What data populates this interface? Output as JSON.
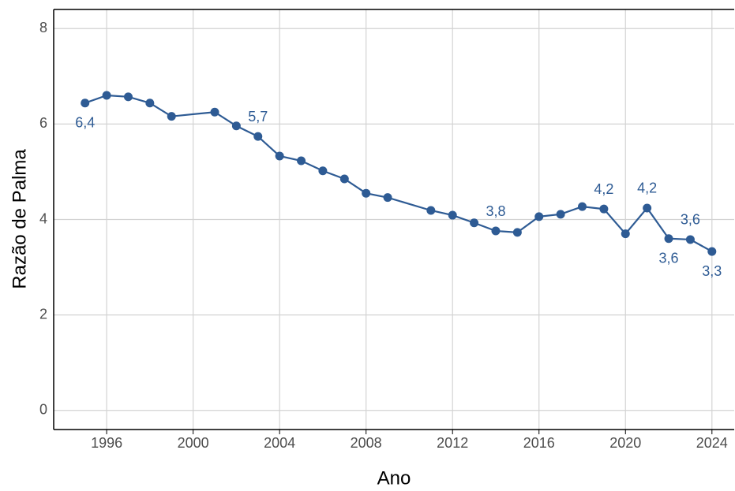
{
  "chart_data": {
    "type": "line",
    "x_label": "Ano",
    "y_label": "Razão de Palma",
    "x": [
      1995,
      1996,
      1997,
      1998,
      1999,
      2001,
      2002,
      2003,
      2004,
      2005,
      2006,
      2007,
      2008,
      2009,
      2011,
      2012,
      2013,
      2014,
      2015,
      2016,
      2017,
      2018,
      2019,
      2020,
      2021,
      2022,
      2023,
      2024
    ],
    "series": [
      {
        "color": "#2e5b94",
        "values": [
          6.44,
          6.6,
          6.57,
          6.44,
          6.16,
          6.25,
          5.96,
          5.74,
          5.33,
          5.23,
          5.02,
          4.85,
          4.55,
          4.46,
          4.19,
          4.09,
          3.93,
          3.76,
          3.73,
          4.06,
          4.11,
          4.27,
          4.22,
          3.7,
          4.24,
          3.6,
          3.58,
          3.33
        ],
        "value_labels": [
          "6,4",
          null,
          null,
          null,
          null,
          null,
          null,
          "5,7",
          null,
          null,
          null,
          null,
          null,
          null,
          null,
          null,
          null,
          "3,8",
          null,
          null,
          null,
          null,
          "4,2",
          null,
          "4,2",
          "3,6",
          "3,6",
          "3,3"
        ]
      }
    ],
    "xlim": [
      1993.55,
      2025.03
    ],
    "xticks": [
      1996,
      2000,
      2004,
      2008,
      2012,
      2016,
      2020,
      2024
    ],
    "ylim": [
      -0.4,
      8.4
    ],
    "yticks": [
      0,
      2,
      4,
      6,
      8
    ],
    "grid": true
  }
}
